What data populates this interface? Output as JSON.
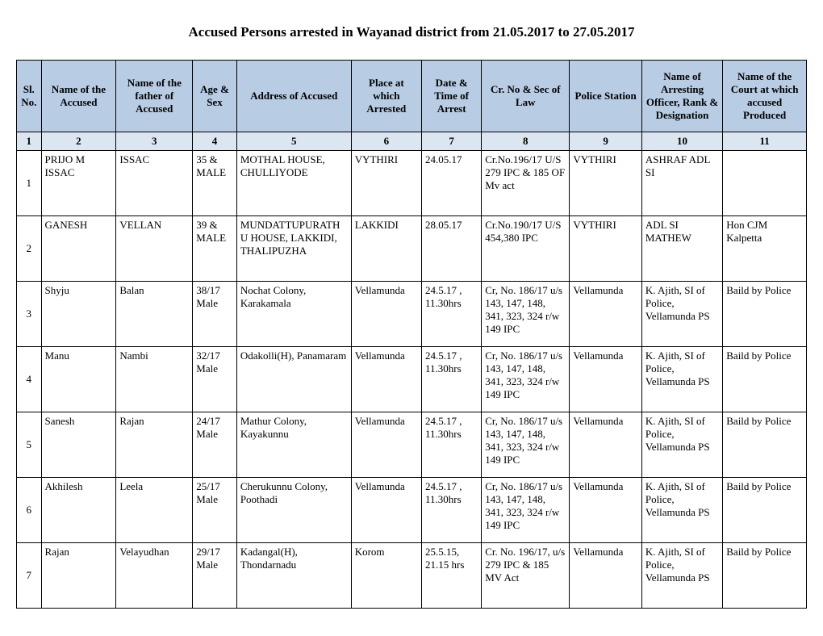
{
  "title": "Accused Persons arrested in    Wayanad  district from   21.05.2017 to 27.05.2017",
  "headers": {
    "sl": "Sl. No.",
    "name": "Name of the Accused",
    "father": "Name of the father of Accused",
    "age": "Age & Sex",
    "address": "Address of Accused",
    "place": "Place at which Arrested",
    "date": "Date & Time of Arrest",
    "cr": "Cr. No & Sec of Law",
    "station": "Police Station",
    "officer": "Name of Arresting Officer, Rank & Designation",
    "court": "Name of the Court at which accused Produced"
  },
  "numrow": [
    "1",
    "2",
    "3",
    "4",
    "5",
    "6",
    "7",
    "8",
    "9",
    "10",
    "11"
  ],
  "rows": [
    {
      "sl": "1",
      "name": "PRIJO M ISSAC",
      "father": "ISSAC",
      "age": "35 & MALE",
      "address": "MOTHAL HOUSE, CHULLIYODE",
      "place": "VYTHIRI",
      "date": "24.05.17",
      "cr": "Cr.No.196/17 U/S 279 IPC & 185 OF Mv act",
      "station": "VYTHIRI",
      "officer": "ASHRAF ADL SI",
      "court": ""
    },
    {
      "sl": "2",
      "name": "GANESH",
      "father": "VELLAN",
      "age": "39 & MALE",
      "address": "MUNDATTUPURATHU HOUSE, LAKKIDI, THALIPUZHA",
      "place": "LAKKIDI",
      "date": "28.05.17",
      "cr": "Cr.No.190/17 U/S 454,380 IPC",
      "station": "VYTHIRI",
      "officer": "ADL SI MATHEW",
      "court": "Hon CJM Kalpetta"
    },
    {
      "sl": "3",
      "name": "Shyju",
      "father": "Balan",
      "age": "38/17 Male",
      "address": "Nochat Colony, Karakamala",
      "place": "Vellamunda",
      "date": "24.5.17 , 11.30hrs",
      "cr": "Cr, No. 186/17 u/s 143, 147, 148, 341, 323, 324 r/w 149 IPC",
      "station": "Vellamunda",
      "officer": "K. Ajith, SI of Police, Vellamunda PS",
      "court": "Baild by Police"
    },
    {
      "sl": "4",
      "name": "Manu",
      "father": "Nambi",
      "age": "32/17 Male",
      "address": "Odakolli(H), Panamaram",
      "place": "Vellamunda",
      "date": "24.5.17 , 11.30hrs",
      "cr": "Cr, No. 186/17 u/s 143, 147, 148, 341, 323, 324 r/w 149 IPC",
      "station": "Vellamunda",
      "officer": "K. Ajith, SI of Police, Vellamunda PS",
      "court": "Baild by Police"
    },
    {
      "sl": "5",
      "name": "Sanesh",
      "father": "Rajan",
      "age": "24/17 Male",
      "address": "Mathur Colony, Kayakunnu",
      "place": "Vellamunda",
      "date": "24.5.17 , 11.30hrs",
      "cr": "Cr, No. 186/17 u/s 143, 147, 148, 341, 323, 324 r/w 149 IPC",
      "station": "Vellamunda",
      "officer": "K. Ajith, SI of Police, Vellamunda PS",
      "court": "Baild by Police"
    },
    {
      "sl": "6",
      "name": "Akhilesh",
      "father": "Leela",
      "age": "25/17 Male",
      "address": "Cherukunnu Colony, Poothadi",
      "place": "Vellamunda",
      "date": "24.5.17 , 11.30hrs",
      "cr": "Cr, No. 186/17 u/s 143, 147, 148, 341, 323, 324 r/w 149 IPC",
      "station": "Vellamunda",
      "officer": "K. Ajith, SI of Police, Vellamunda PS",
      "court": "Baild by Police"
    },
    {
      "sl": "7",
      "name": "Rajan",
      "father": "Velayudhan",
      "age": "29/17 Male",
      "address": "Kadangal(H), Thondarnadu",
      "place": "Korom",
      "date": "25.5.15, 21.15 hrs",
      "cr": "Cr. No. 196/17, u/s 279 IPC & 185 MV Act",
      "station": "Vellamunda",
      "officer": "K. Ajith, SI of Police, Vellamunda PS",
      "court": "Baild by Police"
    }
  ]
}
